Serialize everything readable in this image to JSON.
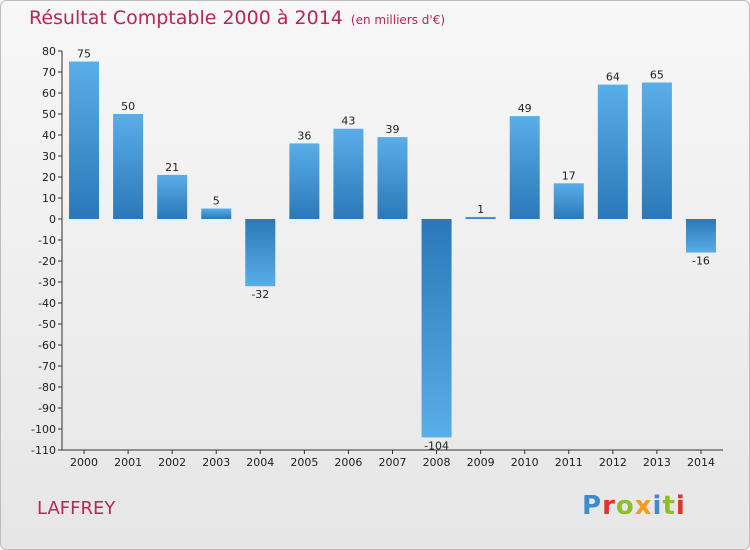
{
  "chart_data": {
    "type": "bar",
    "title": "Résultat Comptable 2000 à 2014",
    "subtitle": "(en milliers d'€)",
    "categories": [
      "2000",
      "2001",
      "2002",
      "2003",
      "2004",
      "2005",
      "2006",
      "2007",
      "2008",
      "2009",
      "2010",
      "2011",
      "2012",
      "2013",
      "2014"
    ],
    "values": [
      75,
      50,
      21,
      5,
      -32,
      36,
      43,
      39,
      -104,
      1,
      49,
      17,
      64,
      65,
      -16
    ],
    "value_labels": [
      "75",
      "50",
      "21",
      "5",
      "-32",
      "36",
      "43",
      "39",
      "-104",
      "1",
      "49",
      "17",
      "64",
      "65",
      "-16"
    ],
    "ylim": [
      -110,
      80
    ],
    "yticks": [
      80,
      70,
      60,
      50,
      40,
      30,
      20,
      10,
      0,
      -10,
      -20,
      -30,
      -40,
      -50,
      -60,
      -70,
      -80,
      -90,
      -100,
      -110
    ],
    "xlabel": "",
    "ylabel": "",
    "grid": false,
    "bar_color": "#3a8fd4"
  },
  "commune": "LAFFREY",
  "logo": {
    "letters": [
      "P",
      "r",
      "o",
      "x",
      "i",
      "t",
      "i"
    ],
    "colors": [
      "#3f8bd0",
      "#e3322f",
      "#8cbf2b",
      "#f29b1c",
      "#3f8bd0",
      "#8cbf2b",
      "#e3322f"
    ]
  }
}
